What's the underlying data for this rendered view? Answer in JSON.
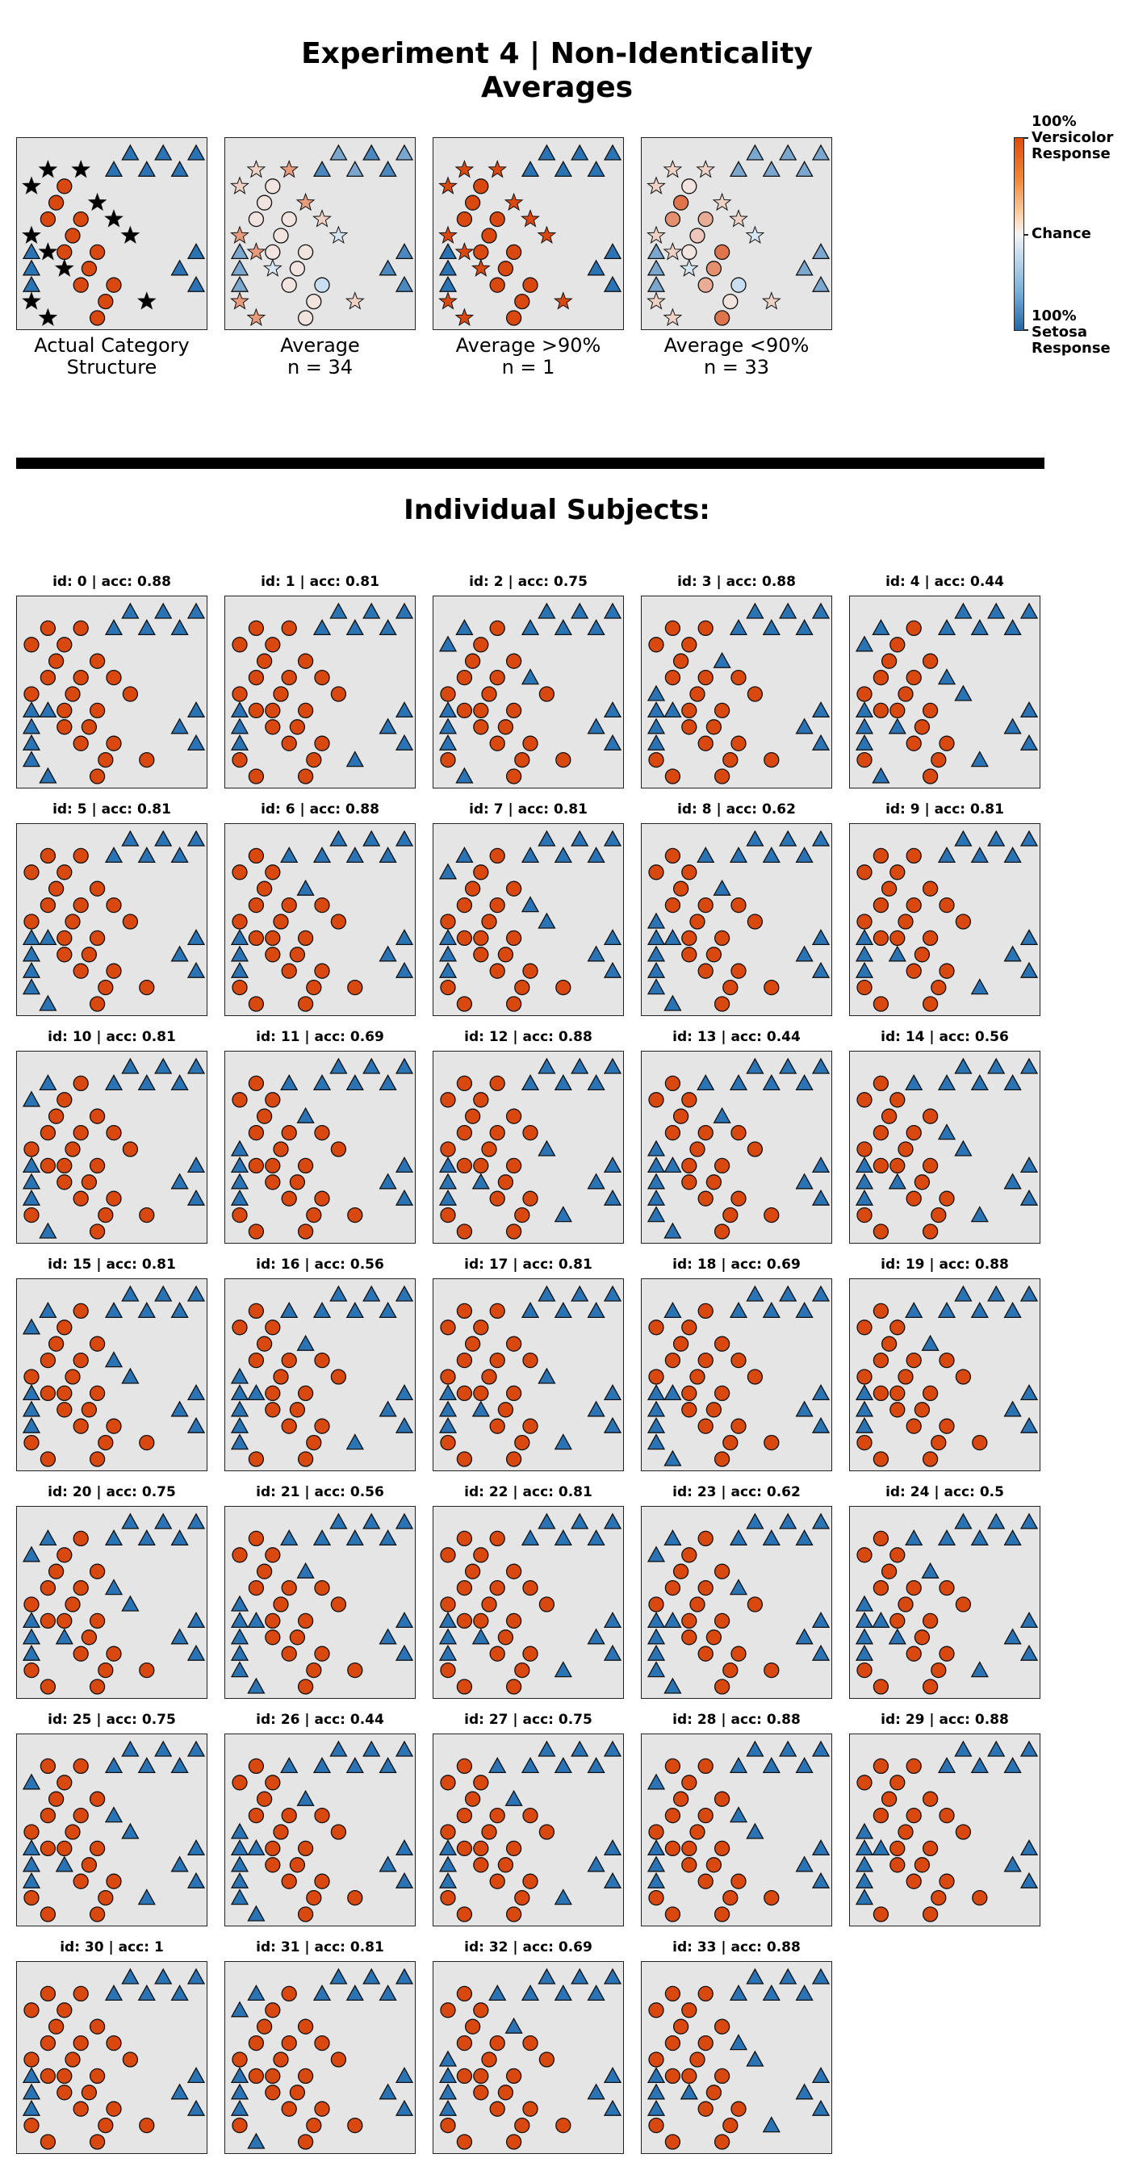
{
  "chart_data": {
    "type": "scatter",
    "title": "Experiment 4 | Non-Identicality\nAverages",
    "section_title": "Individual Subjects:",
    "colorbar": {
      "top": "100%\nVersicolor\nResponse",
      "mid": "Chance",
      "bottom": "100%\nSetosa\nResponse"
    },
    "colors": {
      "versicolor": "#d9480f",
      "setosa": "#2a74b5",
      "category": "#000000",
      "panel_bg": "#e5e5e5"
    },
    "category_structure": {
      "circles": [
        [
          2,
          2
        ],
        [
          3,
          1.5
        ],
        [
          4,
          1
        ],
        [
          4,
          3
        ],
        [
          5,
          2.5
        ],
        [
          6,
          2
        ],
        [
          6,
          4
        ],
        [
          7,
          3.5
        ],
        [
          8,
          3
        ],
        [
          8,
          5
        ],
        [
          9,
          4.5
        ],
        [
          10,
          4
        ]
      ],
      "stars": [
        [
          1,
          1
        ],
        [
          1,
          3
        ],
        [
          2,
          0
        ],
        [
          3,
          4
        ],
        [
          4,
          5
        ],
        [
          5,
          0
        ],
        [
          5,
          6
        ],
        [
          6,
          1
        ],
        [
          7,
          2
        ],
        [
          9,
          0
        ],
        [
          9,
          7
        ],
        [
          10,
          1
        ]
      ],
      "triangles": [
        [
          0,
          6
        ],
        [
          0,
          8
        ],
        [
          0,
          10
        ],
        [
          1,
          5
        ],
        [
          1,
          7
        ],
        [
          1,
          9
        ],
        [
          6,
          0
        ],
        [
          6,
          10
        ],
        [
          7,
          0
        ],
        [
          7,
          9
        ],
        [
          8,
          0
        ],
        [
          8,
          10
        ]
      ]
    },
    "average_panels": [
      {
        "label": "Actual Category\nStructure"
      },
      {
        "label": "Average\nn = 34",
        "n": 34
      },
      {
        "label": "Average >90%\nn = 1",
        "n": 1
      },
      {
        "label": "Average <90%\nn = 33",
        "n": 33
      }
    ],
    "subjects": [
      {
        "id": 0,
        "acc": 0.88
      },
      {
        "id": 1,
        "acc": 0.81
      },
      {
        "id": 2,
        "acc": 0.75
      },
      {
        "id": 3,
        "acc": 0.88
      },
      {
        "id": 4,
        "acc": 0.44
      },
      {
        "id": 5,
        "acc": 0.81
      },
      {
        "id": 6,
        "acc": 0.88
      },
      {
        "id": 7,
        "acc": 0.81
      },
      {
        "id": 8,
        "acc": 0.62
      },
      {
        "id": 9,
        "acc": 0.81
      },
      {
        "id": 10,
        "acc": 0.81
      },
      {
        "id": 11,
        "acc": 0.69
      },
      {
        "id": 12,
        "acc": 0.88
      },
      {
        "id": 13,
        "acc": 0.44
      },
      {
        "id": 14,
        "acc": 0.56
      },
      {
        "id": 15,
        "acc": 0.81
      },
      {
        "id": 16,
        "acc": 0.56
      },
      {
        "id": 17,
        "acc": 0.81
      },
      {
        "id": 18,
        "acc": 0.69
      },
      {
        "id": 19,
        "acc": 0.88
      },
      {
        "id": 20,
        "acc": 0.75
      },
      {
        "id": 21,
        "acc": 0.56
      },
      {
        "id": 22,
        "acc": 0.81
      },
      {
        "id": 23,
        "acc": 0.62
      },
      {
        "id": 24,
        "acc": 0.5
      },
      {
        "id": 25,
        "acc": 0.75
      },
      {
        "id": 26,
        "acc": 0.44
      },
      {
        "id": 27,
        "acc": 0.75
      },
      {
        "id": 28,
        "acc": 0.88
      },
      {
        "id": 29,
        "acc": 0.88
      },
      {
        "id": 30,
        "acc": 1.0
      },
      {
        "id": 31,
        "acc": 0.81
      },
      {
        "id": 32,
        "acc": 0.69
      },
      {
        "id": 33,
        "acc": 0.88
      }
    ]
  }
}
